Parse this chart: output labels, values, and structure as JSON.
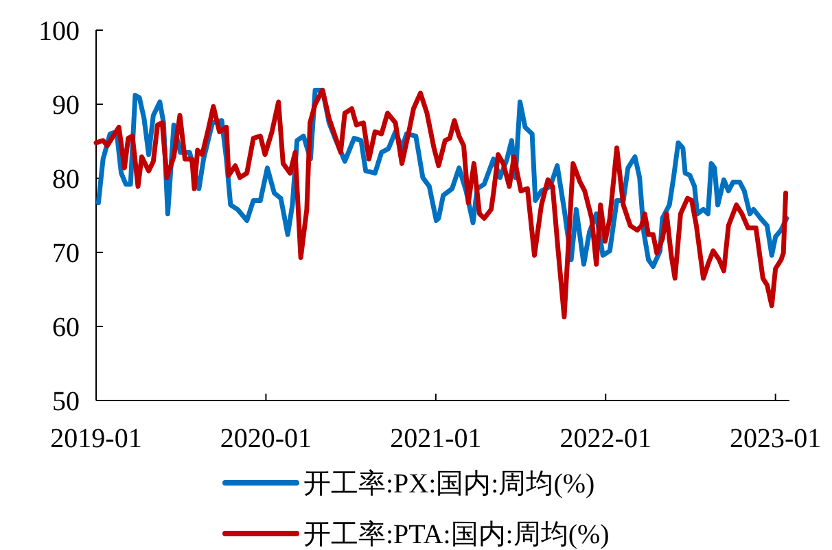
{
  "chart_data": {
    "type": "line",
    "xlim": [
      "2019-01-01",
      "2023-01-31"
    ],
    "ylim": [
      50,
      100
    ],
    "xticks": [
      "2019-01",
      "2020-01",
      "2021-01",
      "2022-01",
      "2023-01"
    ],
    "yticks": [
      50,
      60,
      70,
      80,
      90,
      100
    ],
    "grid": false,
    "legend": "bottom",
    "marker": "none",
    "line_style": "solid",
    "series": [
      {
        "name": "开工率:PX:国内:周均(%)",
        "color": "#0070c0",
        "x": [
          "2019-01-06",
          "2019-01-16",
          "2019-01-31",
          "2019-02-14",
          "2019-02-24",
          "2019-03-06",
          "2019-03-16",
          "2019-03-26",
          "2019-04-04",
          "2019-04-14",
          "2019-04-24",
          "2019-05-04",
          "2019-05-18",
          "2019-05-26",
          "2019-06-04",
          "2019-06-17",
          "2019-07-01",
          "2019-07-21",
          "2019-08-10",
          "2019-08-20",
          "2019-09-08",
          "2019-09-28",
          "2019-10-08",
          "2019-10-17",
          "2019-11-01",
          "2019-11-21",
          "2019-12-05",
          "2019-12-15",
          "2019-12-20",
          "2020-01-04",
          "2020-01-19",
          "2020-02-02",
          "2020-02-17",
          "2020-02-27",
          "2020-03-08",
          "2020-03-22",
          "2020-04-06",
          "2020-04-16",
          "2020-05-02",
          "2020-05-16",
          "2020-05-31",
          "2020-06-19",
          "2020-07-09",
          "2020-07-24",
          "2020-08-03",
          "2020-08-23",
          "2020-09-06",
          "2020-09-21",
          "2020-10-06",
          "2020-10-20",
          "2020-10-30",
          "2020-11-19",
          "2020-12-04",
          "2020-12-18",
          "2021-01-02",
          "2021-01-07",
          "2021-01-17",
          "2021-02-05",
          "2021-02-20",
          "2021-03-07",
          "2021-03-22",
          "2021-03-31",
          "2021-04-15",
          "2021-05-05",
          "2021-05-19",
          "2021-06-03",
          "2021-06-13",
          "2021-06-21",
          "2021-07-01",
          "2021-07-12",
          "2021-07-27",
          "2021-08-03",
          "2021-08-16",
          "2021-09-04",
          "2021-09-19",
          "2021-10-04",
          "2021-10-19",
          "2021-10-30",
          "2021-11-15",
          "2021-11-27",
          "2021-12-12",
          "2021-12-26",
          "2022-01-10",
          "2022-01-25",
          "2022-02-08",
          "2022-02-18",
          "2022-03-05",
          "2022-03-15",
          "2022-03-24",
          "2022-04-03",
          "2022-04-13",
          "2022-04-28",
          "2022-05-03",
          "2022-05-18",
          "2022-05-27",
          "2022-06-06",
          "2022-06-16",
          "2022-06-21",
          "2022-07-01",
          "2022-07-11",
          "2022-07-17",
          "2022-07-30",
          "2022-08-09",
          "2022-08-16",
          "2022-08-23",
          "2022-08-30",
          "2022-09-12",
          "2022-09-22",
          "2022-10-02",
          "2022-10-16",
          "2022-10-26",
          "2022-11-07",
          "2022-11-15",
          "2022-11-30",
          "2022-12-14",
          "2022-12-24",
          "2023-01-01",
          "2023-01-13",
          "2023-01-25"
        ],
        "values": [
          76.7,
          82.6,
          86.0,
          86.3,
          80.7,
          79.2,
          79.2,
          91.2,
          90.9,
          88.1,
          83.2,
          88.5,
          90.3,
          87.5,
          75.2,
          87.2,
          83.5,
          83.5,
          78.6,
          82.6,
          87.5,
          87.8,
          82.6,
          76.4,
          75.8,
          74.3,
          77.0,
          77.0,
          77.0,
          81.4,
          78.0,
          77.3,
          72.4,
          76.4,
          85.1,
          85.7,
          82.6,
          91.9,
          91.9,
          87.5,
          85.1,
          82.3,
          85.4,
          85.1,
          81.0,
          80.7,
          83.5,
          84.0,
          86.3,
          84.1,
          86.0,
          85.7,
          80.1,
          78.9,
          74.3,
          74.6,
          77.7,
          78.6,
          81.4,
          78.3,
          74.0,
          78.6,
          79.2,
          82.6,
          80.1,
          82.6,
          85.1,
          80.1,
          90.3,
          86.9,
          86.0,
          77.0,
          78.3,
          78.9,
          81.7,
          75.8,
          69.0,
          75.8,
          68.4,
          72.7,
          75.2,
          69.6,
          70.2,
          77.0,
          77.0,
          81.4,
          82.9,
          80.1,
          72.7,
          69.0,
          68.1,
          70.2,
          74.6,
          76.4,
          80.1,
          84.8,
          84.1,
          80.7,
          80.4,
          78.9,
          75.2,
          75.8,
          75.2,
          82.0,
          81.4,
          76.4,
          79.8,
          78.3,
          79.5,
          79.5,
          78.3,
          75.2,
          75.8,
          74.6,
          73.6,
          69.6,
          72.1,
          73.0,
          74.6
        ]
      },
      {
        "name": "开工率:PTA:国内:周均(%)",
        "color": "#c00000",
        "x": [
          "2019-01-01",
          "2019-01-16",
          "2019-01-25",
          "2019-02-04",
          "2019-02-19",
          "2019-03-03",
          "2019-03-11",
          "2019-03-20",
          "2019-04-01",
          "2019-04-09",
          "2019-04-24",
          "2019-05-04",
          "2019-05-13",
          "2019-05-23",
          "2019-06-02",
          "2019-06-17",
          "2019-06-30",
          "2019-07-11",
          "2019-07-26",
          "2019-07-31",
          "2019-08-07",
          "2019-08-17",
          "2019-08-30",
          "2019-09-10",
          "2019-09-23",
          "2019-10-08",
          "2019-10-13",
          "2019-10-27",
          "2019-11-06",
          "2019-11-21",
          "2019-12-05",
          "2019-12-20",
          "2019-12-30",
          "2020-01-14",
          "2020-01-28",
          "2020-02-07",
          "2020-02-22",
          "2020-03-04",
          "2020-03-16",
          "2020-03-29",
          "2020-04-05",
          "2020-04-16",
          "2020-05-02",
          "2020-05-16",
          "2020-06-10",
          "2020-06-19",
          "2020-07-04",
          "2020-07-14",
          "2020-07-29",
          "2020-08-10",
          "2020-08-23",
          "2020-09-06",
          "2020-09-19",
          "2020-10-06",
          "2020-10-20",
          "2020-11-04",
          "2020-11-14",
          "2020-11-29",
          "2020-12-13",
          "2020-12-28",
          "2021-01-07",
          "2021-01-21",
          "2021-01-31",
          "2021-02-10",
          "2021-02-20",
          "2021-03-02",
          "2021-03-12",
          "2021-03-24",
          "2021-04-05",
          "2021-04-15",
          "2021-04-30",
          "2021-05-05",
          "2021-05-15",
          "2021-05-26",
          "2021-06-08",
          "2021-06-18",
          "2021-07-03",
          "2021-07-17",
          "2021-08-01",
          "2021-08-16",
          "2021-08-30",
          "2021-09-09",
          "2021-09-21",
          "2021-10-04",
          "2021-10-23",
          "2021-11-07",
          "2021-11-17",
          "2021-12-02",
          "2021-12-12",
          "2021-12-21",
          "2021-12-31",
          "2022-01-10",
          "2022-01-25",
          "2022-02-08",
          "2022-02-23",
          "2022-03-10",
          "2022-03-19",
          "2022-03-26",
          "2022-04-03",
          "2022-04-13",
          "2022-04-21",
          "2022-05-03",
          "2022-05-12",
          "2022-05-22",
          "2022-05-30",
          "2022-06-11",
          "2022-06-26",
          "2022-07-05",
          "2022-07-15",
          "2022-07-30",
          "2022-08-09",
          "2022-08-20",
          "2022-09-02",
          "2022-09-12",
          "2022-09-22",
          "2022-10-09",
          "2022-10-21",
          "2022-11-03",
          "2022-11-20",
          "2022-12-05",
          "2022-12-14",
          "2022-12-24",
          "2023-01-01",
          "2023-01-13",
          "2023-01-18",
          "2023-01-23"
        ],
        "values": [
          84.8,
          85.1,
          84.4,
          85.4,
          86.9,
          81.4,
          85.4,
          85.7,
          78.9,
          82.9,
          81.0,
          82.3,
          87.2,
          87.5,
          80.1,
          82.9,
          88.5,
          82.6,
          82.6,
          78.6,
          83.8,
          83.2,
          86.6,
          89.7,
          86.3,
          86.9,
          80.4,
          81.7,
          80.1,
          80.7,
          85.4,
          85.7,
          83.2,
          86.3,
          90.3,
          82.0,
          80.7,
          83.5,
          69.3,
          75.8,
          87.5,
          90.0,
          91.9,
          88.1,
          83.5,
          88.8,
          89.4,
          87.2,
          87.5,
          82.6,
          86.3,
          86.0,
          88.8,
          87.5,
          82.0,
          86.3,
          89.4,
          91.5,
          88.8,
          84.1,
          81.7,
          85.1,
          85.4,
          87.8,
          85.7,
          84.4,
          76.7,
          82.0,
          75.2,
          74.6,
          75.8,
          78.0,
          83.2,
          82.0,
          78.9,
          82.9,
          78.3,
          78.6,
          69.6,
          76.4,
          79.8,
          78.9,
          70.2,
          61.3,
          82.0,
          79.5,
          78.3,
          74.6,
          68.4,
          76.4,
          71.5,
          74.6,
          84.1,
          76.4,
          73.6,
          73.0,
          73.6,
          75.2,
          72.4,
          72.4,
          69.9,
          71.8,
          75.2,
          69.6,
          66.5,
          75.2,
          77.3,
          77.0,
          73.6,
          66.5,
          68.4,
          70.2,
          69.0,
          67.5,
          73.6,
          76.4,
          75.2,
          73.3,
          73.3,
          66.5,
          65.6,
          62.8,
          67.8,
          69.0,
          69.9,
          78.0
        ]
      }
    ]
  }
}
